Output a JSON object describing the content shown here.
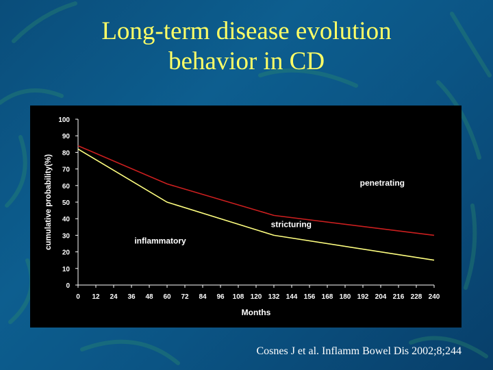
{
  "slide": {
    "title_line1": "Long-term disease evolution",
    "title_line2": "behavior in CD",
    "citation": "Cosnes J et al. Inflamm Bowel Dis 2002;8;244"
  },
  "colors": {
    "title": "#ffff66",
    "background": "#0b5484",
    "chart_bg": "#000000",
    "penetrating": "#cc1f1f",
    "stricturing": "#ffff80"
  },
  "chart_data": {
    "type": "line",
    "xlabel": "Months",
    "ylabel": "cumulative probability(%)",
    "xlim": [
      0,
      240
    ],
    "ylim": [
      0,
      100
    ],
    "x_ticks": [
      0,
      12,
      24,
      36,
      48,
      60,
      72,
      84,
      96,
      108,
      120,
      132,
      144,
      156,
      168,
      180,
      192,
      204,
      216,
      228,
      240
    ],
    "y_ticks": [
      0,
      10,
      20,
      30,
      40,
      50,
      60,
      70,
      80,
      90,
      100
    ],
    "grid": false,
    "legend": "none",
    "series": [
      {
        "name": "penetrating",
        "x": [
          0,
          60,
          132,
          240
        ],
        "y": [
          84,
          61,
          42,
          30
        ]
      },
      {
        "name": "stricturing",
        "x": [
          0,
          60,
          132,
          240
        ],
        "y": [
          82,
          50,
          30,
          15
        ]
      }
    ],
    "annotations": [
      {
        "text": "penetrating",
        "x": 190,
        "y": 60
      },
      {
        "text": "stricturing",
        "x": 130,
        "y": 35
      },
      {
        "text": "inflammatory",
        "x": 38,
        "y": 25
      }
    ]
  }
}
